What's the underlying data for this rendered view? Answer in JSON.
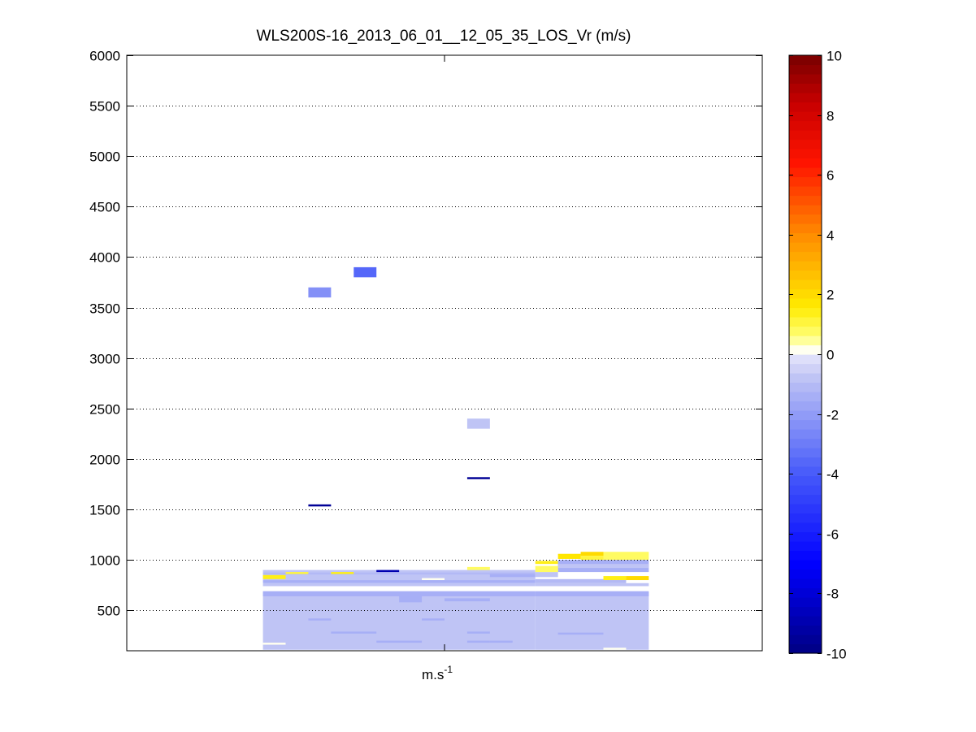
{
  "chart_data": {
    "type": "heatmap",
    "title": "WLS200S-16_2013_06_01__12_05_35_LOS_Vr (m/s)",
    "xlabel": "m.s",
    "xlabel_sup": "-1",
    "ylabel": "",
    "ylim": [
      100,
      6000
    ],
    "yticks": [
      500,
      1000,
      1500,
      2000,
      2500,
      3000,
      3500,
      4000,
      4500,
      5000,
      5500,
      6000
    ],
    "grid": "horizontal dotted",
    "colorbar": {
      "range": [
        -10,
        10
      ],
      "ticks": [
        10,
        8,
        6,
        4,
        2,
        0,
        -2,
        -4,
        -6,
        -8,
        -10
      ],
      "levels": 64
    },
    "x_columns": 28,
    "cells": [
      {
        "c0": 6,
        "c1": 18,
        "y0": 110,
        "y1": 680,
        "v": -0.9
      },
      {
        "c0": 6,
        "c1": 18,
        "y0": 640,
        "y1": 690,
        "v": -1.5
      },
      {
        "c0": 6,
        "c1": 18,
        "y0": 740,
        "y1": 770,
        "v": -0.9
      },
      {
        "c0": 6,
        "c1": 18,
        "y0": 770,
        "y1": 800,
        "v": -1.5
      },
      {
        "c0": 6,
        "c1": 18,
        "y0": 800,
        "y1": 850,
        "v": -0.9
      },
      {
        "c0": 6,
        "c1": 18,
        "y0": 850,
        "y1": 880,
        "v": -1.2
      },
      {
        "c0": 6,
        "c1": 18,
        "y0": 880,
        "y1": 900,
        "v": -0.9
      },
      {
        "c0": 6,
        "c1": 7,
        "y0": 810,
        "y1": 850,
        "v": 1.5
      },
      {
        "c0": 7,
        "c1": 8,
        "y0": 860,
        "y1": 880,
        "v": 1.0
      },
      {
        "c0": 9,
        "c1": 10,
        "y0": 860,
        "y1": 880,
        "v": 1.3
      },
      {
        "c0": 11,
        "c1": 12,
        "y0": 880,
        "y1": 900,
        "v": -9
      },
      {
        "c0": 12,
        "c1": 13,
        "y0": 580,
        "y1": 640,
        "v": -1.5
      },
      {
        "c0": 13,
        "c1": 14,
        "y0": 800,
        "y1": 820,
        "v": 0.2
      },
      {
        "c0": 14,
        "c1": 16,
        "y0": 590,
        "y1": 620,
        "v": -1.5
      },
      {
        "c0": 16,
        "c1": 18,
        "y0": 830,
        "y1": 860,
        "v": -1.5
      },
      {
        "c0": 15,
        "c1": 16,
        "y0": 900,
        "y1": 930,
        "v": 0.9
      },
      {
        "c0": 8,
        "c1": 9,
        "y0": 400,
        "y1": 420,
        "v": -1.5
      },
      {
        "c0": 13,
        "c1": 14,
        "y0": 400,
        "y1": 420,
        "v": -1.5
      },
      {
        "c0": 9,
        "c1": 11,
        "y0": 270,
        "y1": 290,
        "v": -1.5
      },
      {
        "c0": 15,
        "c1": 16,
        "y0": 270,
        "y1": 290,
        "v": -1.5
      },
      {
        "c0": 11,
        "c1": 13,
        "y0": 180,
        "y1": 200,
        "v": -1.5
      },
      {
        "c0": 15,
        "c1": 16,
        "y0": 180,
        "y1": 200,
        "v": -1.5
      },
      {
        "c0": 16,
        "c1": 17,
        "y0": 180,
        "y1": 200,
        "v": -1.5
      },
      {
        "c0": 6,
        "c1": 7,
        "y0": 160,
        "y1": 180,
        "v": 0.1
      },
      {
        "c0": 18,
        "c1": 23,
        "y0": 110,
        "y1": 680,
        "v": -0.9
      },
      {
        "c0": 18,
        "c1": 23,
        "y0": 640,
        "y1": 690,
        "v": -1.5
      },
      {
        "c0": 18,
        "c1": 23,
        "y0": 740,
        "y1": 770,
        "v": -0.9
      },
      {
        "c0": 18,
        "c1": 22,
        "y0": 770,
        "y1": 810,
        "v": -1.2
      },
      {
        "c0": 18,
        "c1": 19,
        "y0": 830,
        "y1": 880,
        "v": -0.9
      },
      {
        "c0": 18,
        "c1": 19,
        "y0": 960,
        "y1": 990,
        "v": 1.3
      },
      {
        "c0": 19,
        "c1": 20,
        "y0": 1010,
        "y1": 1060,
        "v": 1.8
      },
      {
        "c0": 20,
        "c1": 21,
        "y0": 1040,
        "y1": 1080,
        "v": 2.0
      },
      {
        "c0": 20,
        "c1": 22,
        "y0": 1000,
        "y1": 1040,
        "v": 1.0
      },
      {
        "c0": 21,
        "c1": 23,
        "y0": 1000,
        "y1": 1080,
        "v": 0.8
      },
      {
        "c0": 22,
        "c1": 23,
        "y0": 800,
        "y1": 840,
        "v": 2.0
      },
      {
        "c0": 21,
        "c1": 22,
        "y0": 800,
        "y1": 840,
        "v": 1.3
      },
      {
        "c0": 19,
        "c1": 23,
        "y0": 880,
        "y1": 1000,
        "v": -1.3
      },
      {
        "c0": 19,
        "c1": 23,
        "y0": 920,
        "y1": 960,
        "v": -0.9
      },
      {
        "c0": 18,
        "c1": 19,
        "y0": 880,
        "y1": 940,
        "v": 0.9
      },
      {
        "c0": 19,
        "c1": 21,
        "y0": 260,
        "y1": 280,
        "v": -1.5
      },
      {
        "c0": 21,
        "c1": 22,
        "y0": 110,
        "y1": 130,
        "v": 0.0
      },
      {
        "c0": 8,
        "c1": 9,
        "y0": 3600,
        "y1": 3700,
        "v": -2.3
      },
      {
        "c0": 10,
        "c1": 11,
        "y0": 3800,
        "y1": 3900,
        "v": -3.5
      },
      {
        "c0": 15,
        "c1": 16,
        "y0": 2300,
        "y1": 2400,
        "v": -0.9
      },
      {
        "c0": 8,
        "c1": 9,
        "y0": 1530,
        "y1": 1550,
        "v": -9.5
      },
      {
        "c0": 15,
        "c1": 16,
        "y0": 1800,
        "y1": 1820,
        "v": -9.5
      }
    ]
  }
}
